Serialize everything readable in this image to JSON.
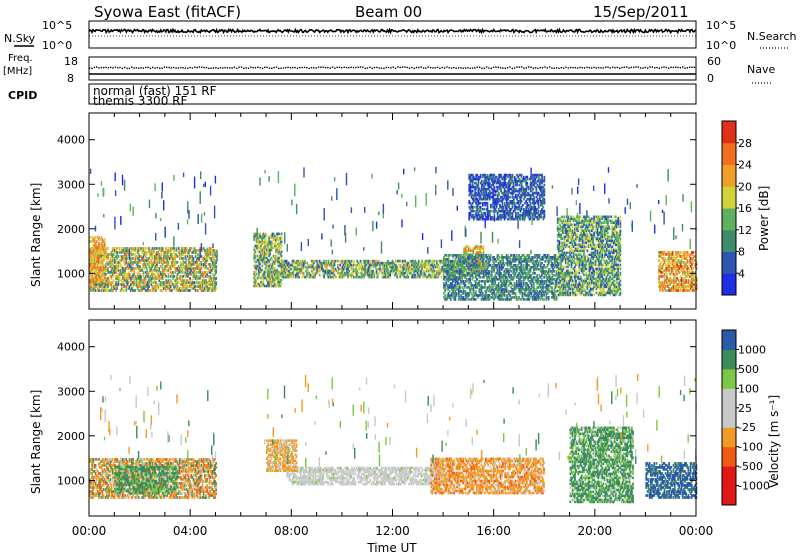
{
  "header": {
    "station": "Syowa East (fitACF)",
    "beam": "Beam 00",
    "date": "15/Sep/2011"
  },
  "strips": {
    "nsky": {
      "label": "N.Sky",
      "ticks": [
        "10^5",
        "10^0"
      ],
      "right_label": "N.Search",
      "right_ticks": [
        "10^5",
        "10^0"
      ]
    },
    "freq": {
      "label_line1": "Freq.",
      "label_line2": "[MHz]",
      "ticks": [
        "18",
        "8"
      ],
      "right_label": "Nave",
      "right_ticks": [
        "60",
        "0"
      ]
    },
    "cpid": {
      "label": "CPID",
      "line1": "normal (fast) 151 RF",
      "line2": "themis 3300 RF"
    }
  },
  "x_axis": {
    "label": "Time UT",
    "ticks": [
      "00:00",
      "04:00",
      "08:00",
      "12:00",
      "16:00",
      "20:00",
      "00:00"
    ],
    "range_hours": [
      0,
      24
    ]
  },
  "colors": {
    "power": [
      "#1f2ee6",
      "#2e54b4",
      "#3e8c6a",
      "#5fb15f",
      "#d2d23a",
      "#f0a02a",
      "#f07020",
      "#e03018"
    ],
    "velocity": [
      "#e01818",
      "#f05a14",
      "#f39a26",
      "#c8c8c8",
      "#c8c8c8",
      "#7ac846",
      "#3a8c5a",
      "#2a5aa8"
    ]
  },
  "chart_data": [
    {
      "type": "heatmap",
      "panel": "power",
      "xlabel": "Time UT",
      "ylabel": "Slant Range [km]",
      "xlim": [
        0,
        24
      ],
      "ylim": [
        200,
        4600
      ],
      "yticks": [
        1000,
        2000,
        3000,
        4000
      ],
      "colorbar_label": "Power [dB]",
      "colorbar_ticks": [
        "4",
        "8",
        "12",
        "16",
        "20",
        "24",
        "28"
      ],
      "colorbar_range": [
        0,
        32
      ],
      "regions": [
        {
          "t": [
            0.0,
            5.0
          ],
          "r": [
            600,
            1550
          ],
          "value": 16,
          "spread": 10
        },
        {
          "t": [
            0.0,
            0.6
          ],
          "r": [
            800,
            1800
          ],
          "value": 22,
          "spread": 6
        },
        {
          "t": [
            6.5,
            7.6
          ],
          "r": [
            700,
            1900
          ],
          "value": 14,
          "spread": 8
        },
        {
          "t": [
            7.6,
            14.8
          ],
          "r": [
            900,
            1300
          ],
          "value": 14,
          "spread": 8
        },
        {
          "t": [
            14.8,
            15.6
          ],
          "r": [
            1000,
            1600
          ],
          "value": 20,
          "spread": 8
        },
        {
          "t": [
            14.0,
            18.5
          ],
          "r": [
            400,
            1400
          ],
          "value": 10,
          "spread": 6
        },
        {
          "t": [
            18.5,
            21.0
          ],
          "r": [
            500,
            2300
          ],
          "value": 12,
          "spread": 8
        },
        {
          "t": [
            22.5,
            24.0
          ],
          "r": [
            600,
            1500
          ],
          "value": 22,
          "spread": 8
        },
        {
          "t": [
            15.0,
            18.0
          ],
          "r": [
            2200,
            3200
          ],
          "value": 6,
          "spread": 4
        }
      ]
    },
    {
      "type": "heatmap",
      "panel": "velocity",
      "xlabel": "Time UT",
      "ylabel": "Slant Range [km]",
      "xlim": [
        0,
        24
      ],
      "ylim": [
        200,
        4600
      ],
      "yticks": [
        1000,
        2000,
        3000,
        4000
      ],
      "colorbar_label": "Velocity [m s⁻¹]",
      "colorbar_ticks": [
        "1000",
        "500",
        "100",
        "25",
        "-25",
        "-100",
        "-500",
        "-1000"
      ],
      "regions": [
        {
          "t": [
            0.0,
            5.0
          ],
          "r": [
            600,
            1500
          ],
          "value": -200,
          "spread": 500
        },
        {
          "t": [
            1.0,
            3.5
          ],
          "r": [
            700,
            1300
          ],
          "value": 150,
          "spread": 150
        },
        {
          "t": [
            7.8,
            14.0
          ],
          "r": [
            900,
            1300
          ],
          "value": 0,
          "spread": 30
        },
        {
          "t": [
            7.0,
            8.2
          ],
          "r": [
            1200,
            1900
          ],
          "value": -200,
          "spread": 200
        },
        {
          "t": [
            13.5,
            18.0
          ],
          "r": [
            700,
            1500
          ],
          "value": -300,
          "spread": 300
        },
        {
          "t": [
            19.0,
            21.5
          ],
          "r": [
            500,
            2200
          ],
          "value": 150,
          "spread": 150
        },
        {
          "t": [
            22.0,
            24.0
          ],
          "r": [
            600,
            1400
          ],
          "value": 700,
          "spread": 400
        }
      ]
    }
  ]
}
